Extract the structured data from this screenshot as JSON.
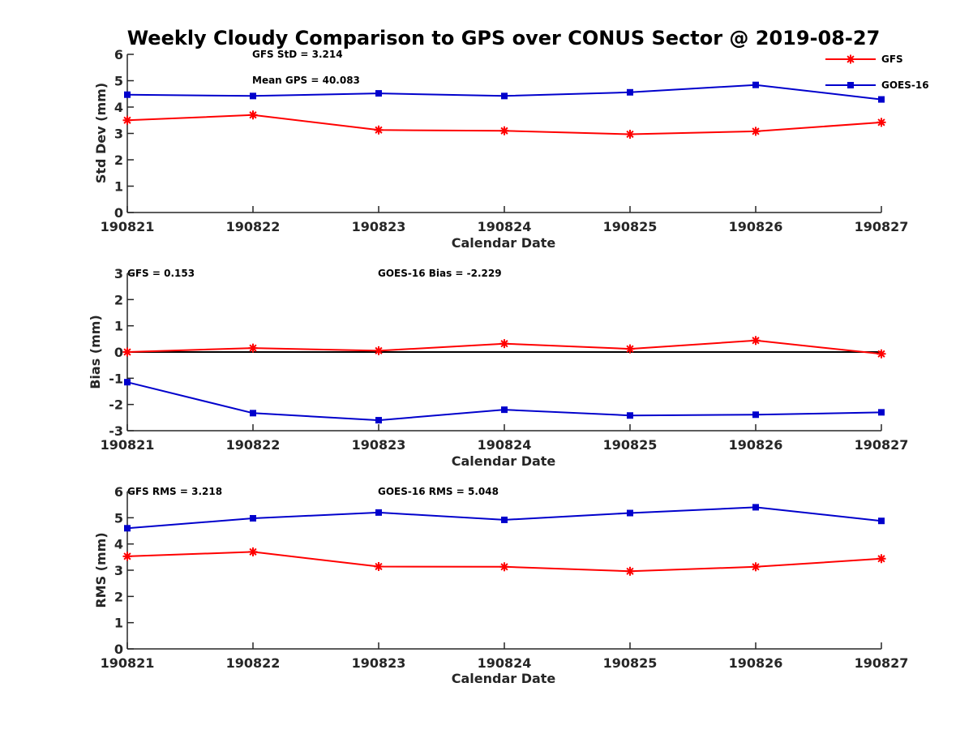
{
  "title": "Weekly Cloudy Comparison to GPS over CONUS Sector @ 2019-08-27",
  "legend": [
    {
      "name": "GFS",
      "color": "#ff0000",
      "marker": "asterisk"
    },
    {
      "name": "GOES-16",
      "color": "#0000cc",
      "marker": "square"
    }
  ],
  "chart_data": [
    {
      "type": "line",
      "categories": [
        "190821",
        "190822",
        "190823",
        "190824",
        "190825",
        "190826",
        "190827"
      ],
      "xlabel": "Calendar Date",
      "ylabel": "Std Dev (mm)",
      "ylim": [
        0,
        6
      ],
      "yticks": [
        0,
        1,
        2,
        3,
        4,
        5,
        6
      ],
      "grid": false,
      "legend_placement": "top-right",
      "annotations": [
        "GFS StD = 3.214",
        "Mean GPS = 40.083"
      ],
      "series": [
        {
          "name": "GFS",
          "color": "#ff0000",
          "marker": "asterisk",
          "values": [
            3.5,
            3.7,
            3.13,
            3.1,
            2.97,
            3.08,
            3.42
          ]
        },
        {
          "name": "GOES-16",
          "color": "#0000cc",
          "marker": "square",
          "values": [
            4.47,
            4.42,
            4.52,
            4.42,
            4.56,
            4.84,
            4.29
          ]
        }
      ]
    },
    {
      "type": "line",
      "categories": [
        "190821",
        "190822",
        "190823",
        "190824",
        "190825",
        "190826",
        "190827"
      ],
      "xlabel": "Calendar Date",
      "ylabel": "Bias (mm)",
      "ylim": [
        -3,
        3
      ],
      "yticks": [
        -3,
        -2,
        -1,
        0,
        1,
        2,
        3
      ],
      "grid": false,
      "zero_line": true,
      "annotations": [
        "GFS = 0.153",
        "GOES-16 Bias  = -2.229"
      ],
      "series": [
        {
          "name": "GFS",
          "color": "#ff0000",
          "marker": "asterisk",
          "values": [
            0.0,
            0.15,
            0.05,
            0.32,
            0.12,
            0.44,
            -0.07
          ]
        },
        {
          "name": "GOES-16",
          "color": "#0000cc",
          "marker": "square",
          "values": [
            -1.15,
            -2.33,
            -2.6,
            -2.2,
            -2.42,
            -2.39,
            -2.3
          ]
        }
      ]
    },
    {
      "type": "line",
      "categories": [
        "190821",
        "190822",
        "190823",
        "190824",
        "190825",
        "190826",
        "190827"
      ],
      "xlabel": "Calendar Date",
      "ylabel": "RMS (mm)",
      "ylim": [
        0,
        6
      ],
      "yticks": [
        0,
        1,
        2,
        3,
        4,
        5,
        6
      ],
      "grid": false,
      "annotations": [
        "GFS RMS = 3.218",
        "GOES-16 RMS = 5.048"
      ],
      "series": [
        {
          "name": "GFS",
          "color": "#ff0000",
          "marker": "asterisk",
          "values": [
            3.53,
            3.7,
            3.14,
            3.13,
            2.96,
            3.13,
            3.44
          ]
        },
        {
          "name": "GOES-16",
          "color": "#0000cc",
          "marker": "square",
          "values": [
            4.6,
            4.98,
            5.2,
            4.92,
            5.18,
            5.4,
            4.88
          ]
        }
      ]
    }
  ]
}
